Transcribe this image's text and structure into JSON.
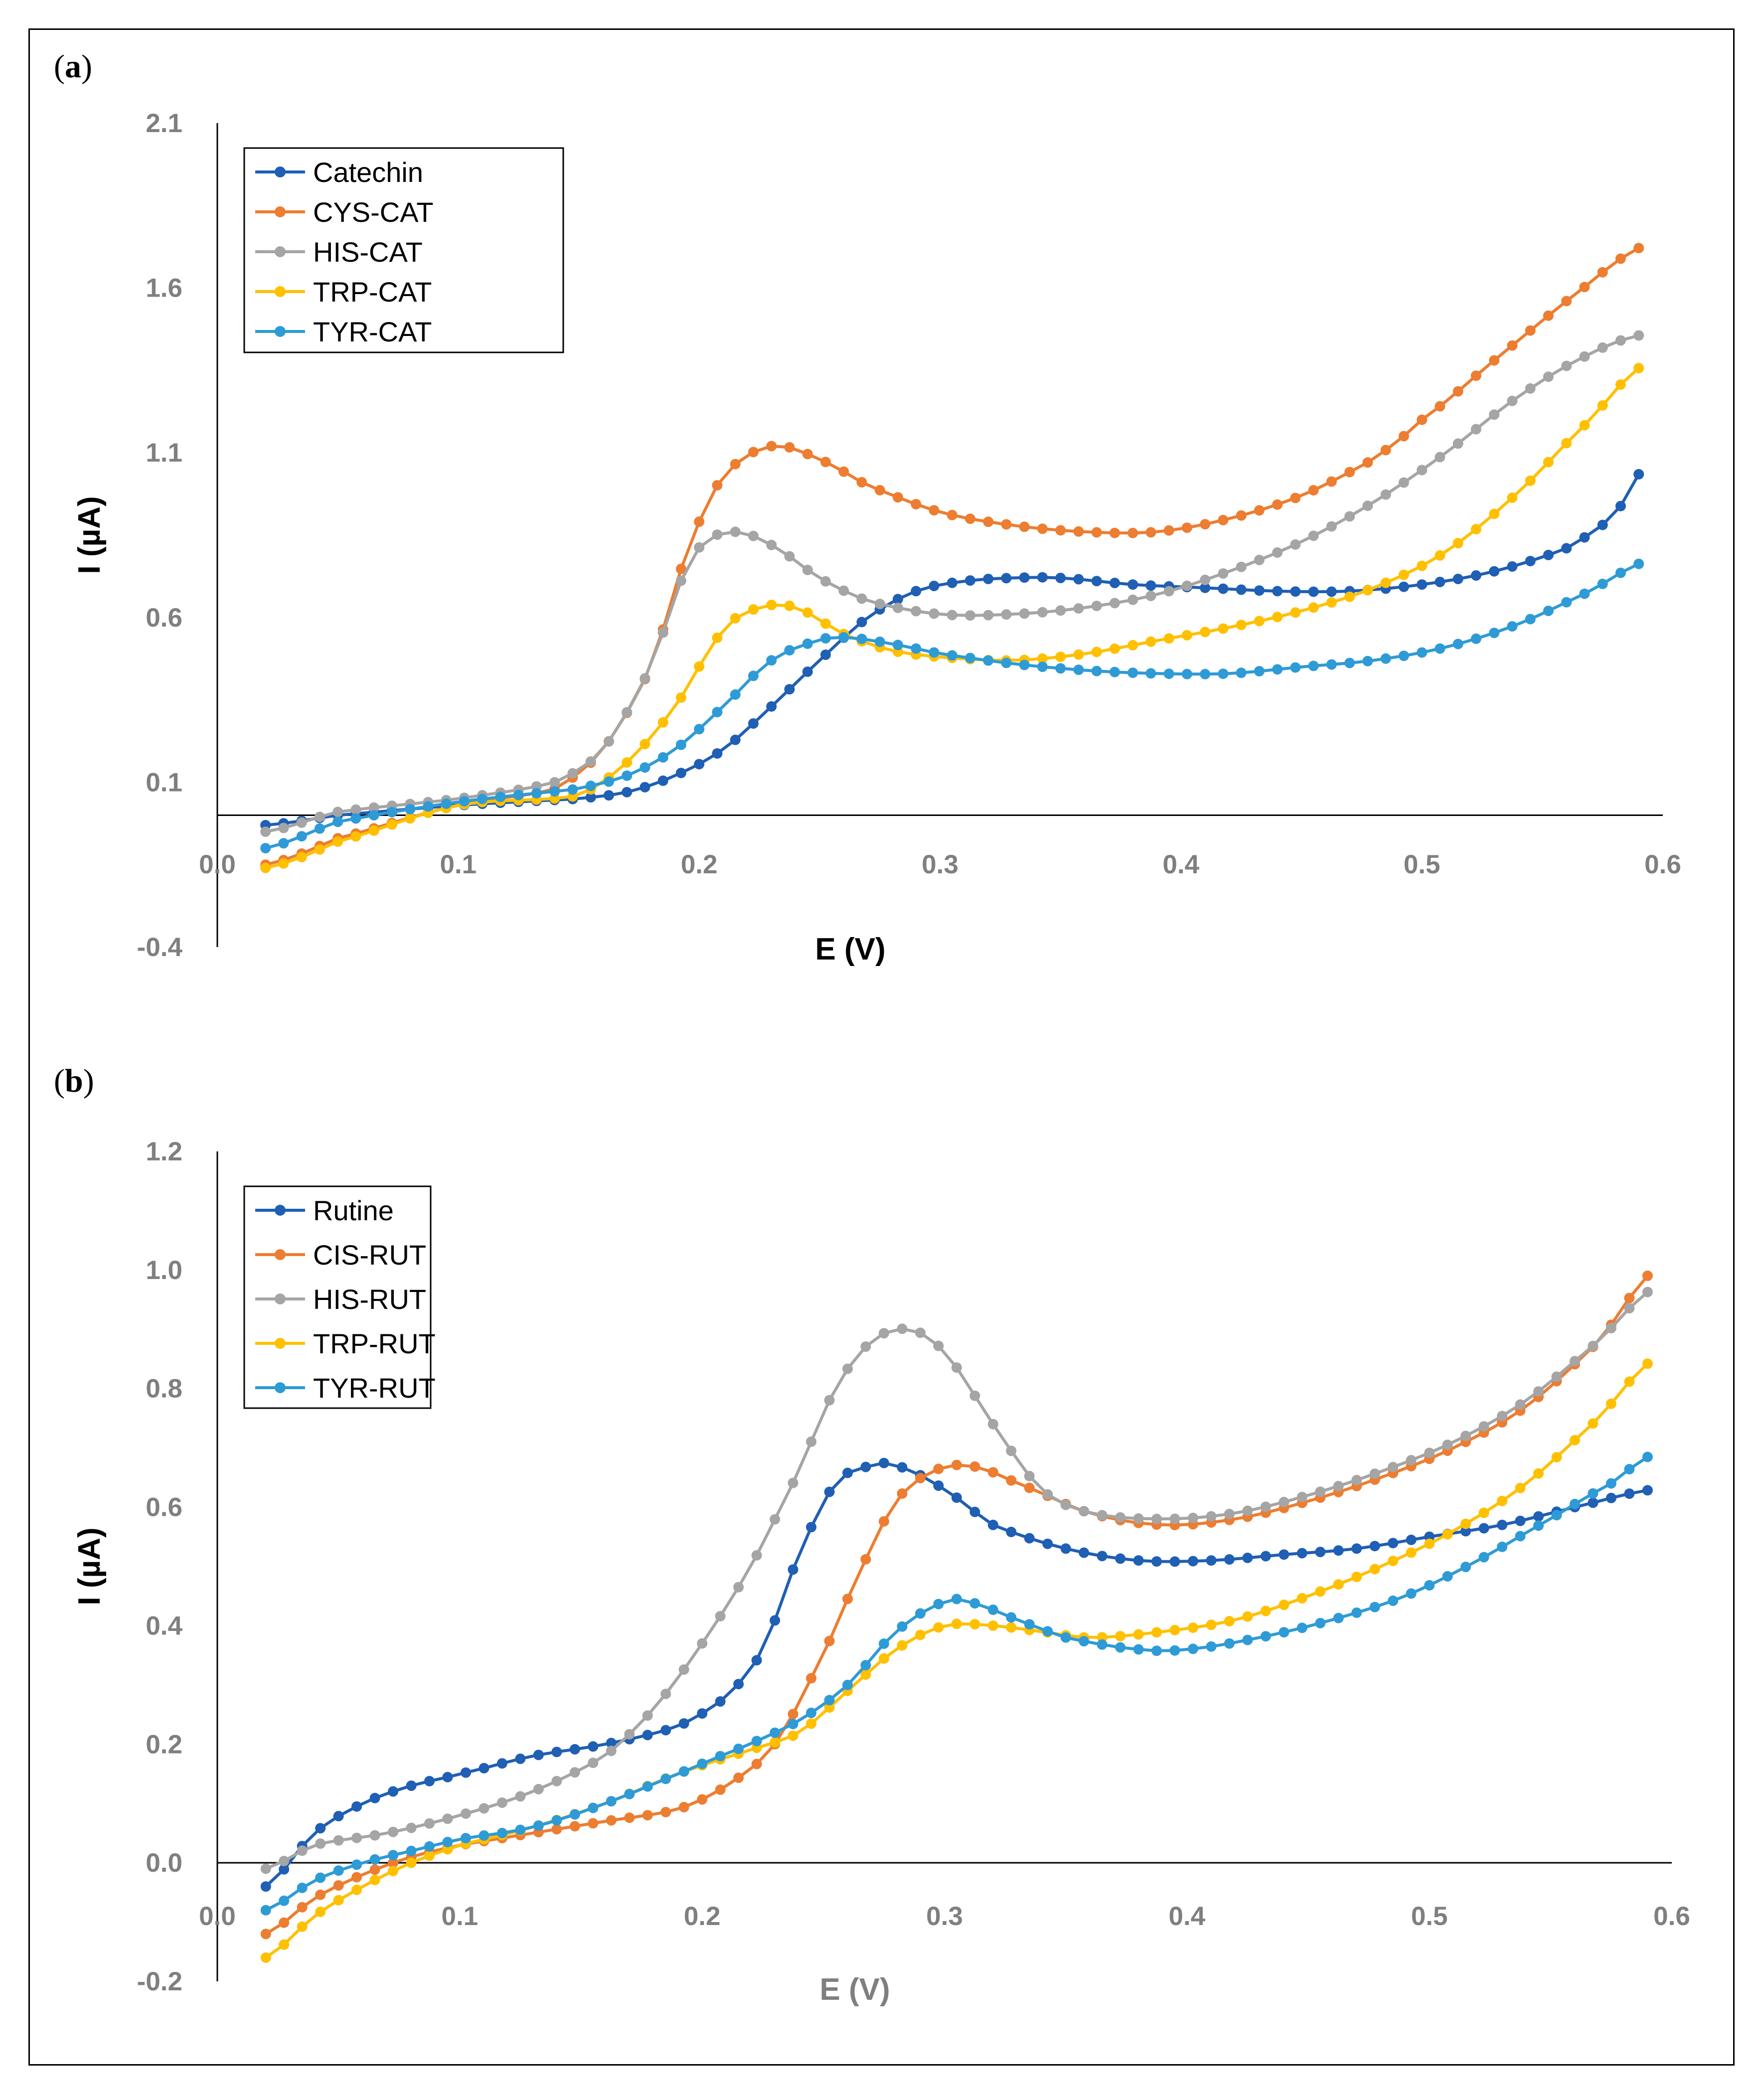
{
  "chart_data": [
    {
      "panel_label": "a",
      "type": "line",
      "xlabel": "E (V)",
      "ylabel": "I (µA)",
      "xlim": [
        0.0,
        0.6
      ],
      "ylim": [
        -0.4,
        2.1
      ],
      "xticks": [
        "0.0",
        "0.1",
        "0.2",
        "0.3",
        "0.4",
        "0.5",
        "0.6"
      ],
      "yticks": [
        "-0.4",
        "0.1",
        "0.6",
        "1.1",
        "1.6",
        "2.1"
      ],
      "ytick_values": [
        -0.4,
        0.1,
        0.6,
        1.1,
        1.6,
        2.1
      ],
      "legend_position": "top-left",
      "series": [
        {
          "name": "Catechin",
          "color": "#1f5fb4",
          "x": [
            0.02,
            0.05,
            0.1,
            0.15,
            0.17,
            0.19,
            0.21,
            0.23,
            0.25,
            0.27,
            0.29,
            0.31,
            0.33,
            0.35,
            0.38,
            0.41,
            0.44,
            0.47,
            0.5,
            0.53,
            0.56,
            0.58,
            0.593
          ],
          "y": [
            -0.03,
            0.0,
            0.03,
            0.05,
            0.07,
            0.12,
            0.2,
            0.33,
            0.47,
            0.6,
            0.68,
            0.71,
            0.72,
            0.72,
            0.7,
            0.69,
            0.68,
            0.68,
            0.7,
            0.74,
            0.81,
            0.91,
            1.06
          ]
        },
        {
          "name": "CYS-CAT",
          "color": "#ed7d31",
          "x": [
            0.02,
            0.05,
            0.1,
            0.14,
            0.16,
            0.18,
            0.195,
            0.21,
            0.23,
            0.25,
            0.27,
            0.3,
            0.33,
            0.36,
            0.39,
            0.42,
            0.45,
            0.48,
            0.5,
            0.53,
            0.56,
            0.593
          ],
          "y": [
            -0.15,
            -0.07,
            0.03,
            0.08,
            0.2,
            0.45,
            0.8,
            1.03,
            1.12,
            1.08,
            1.0,
            0.92,
            0.88,
            0.86,
            0.86,
            0.9,
            0.97,
            1.08,
            1.2,
            1.38,
            1.56,
            1.73
          ]
        },
        {
          "name": "HIS-CAT",
          "color": "#a5a5a5",
          "x": [
            0.02,
            0.05,
            0.1,
            0.14,
            0.16,
            0.18,
            0.195,
            0.205,
            0.215,
            0.23,
            0.25,
            0.27,
            0.3,
            0.33,
            0.36,
            0.39,
            0.42,
            0.45,
            0.48,
            0.51,
            0.54,
            0.57,
            0.593
          ],
          "y": [
            -0.05,
            0.01,
            0.05,
            0.1,
            0.2,
            0.45,
            0.75,
            0.84,
            0.86,
            0.82,
            0.72,
            0.65,
            0.61,
            0.61,
            0.63,
            0.67,
            0.74,
            0.83,
            0.95,
            1.1,
            1.27,
            1.4,
            1.46
          ]
        },
        {
          "name": "TRP-CAT",
          "color": "#ffc000",
          "x": [
            0.02,
            0.05,
            0.1,
            0.15,
            0.17,
            0.19,
            0.21,
            0.225,
            0.24,
            0.26,
            0.28,
            0.3,
            0.33,
            0.36,
            0.39,
            0.42,
            0.45,
            0.48,
            0.51,
            0.54,
            0.57,
            0.593
          ],
          "y": [
            -0.16,
            -0.08,
            0.03,
            0.06,
            0.16,
            0.33,
            0.56,
            0.63,
            0.63,
            0.55,
            0.5,
            0.48,
            0.47,
            0.49,
            0.53,
            0.57,
            0.62,
            0.69,
            0.8,
            0.98,
            1.2,
            1.37
          ]
        },
        {
          "name": "TYR-CAT",
          "color": "#2e9bd6",
          "x": [
            0.02,
            0.05,
            0.1,
            0.15,
            0.17,
            0.19,
            0.21,
            0.23,
            0.25,
            0.26,
            0.28,
            0.3,
            0.33,
            0.36,
            0.39,
            0.42,
            0.45,
            0.48,
            0.51,
            0.54,
            0.57,
            0.593
          ],
          "y": [
            -0.1,
            -0.02,
            0.04,
            0.08,
            0.12,
            0.2,
            0.33,
            0.47,
            0.53,
            0.54,
            0.52,
            0.49,
            0.46,
            0.44,
            0.43,
            0.43,
            0.45,
            0.47,
            0.51,
            0.58,
            0.68,
            0.77
          ]
        }
      ]
    },
    {
      "panel_label": "b",
      "type": "line",
      "xlabel": "E (V)",
      "ylabel": "I (µA)",
      "xlim": [
        0.0,
        0.6
      ],
      "ylim": [
        -0.2,
        1.2
      ],
      "xticks": [
        "0.0",
        "0.1",
        "0.2",
        "0.3",
        "0.4",
        "0.5",
        "0.6"
      ],
      "yticks": [
        "-0.2",
        "0.0",
        "0.2",
        "0.4",
        "0.6",
        "0.8",
        "1.0",
        "1.2"
      ],
      "ytick_values": [
        -0.2,
        0.0,
        0.2,
        0.4,
        0.6,
        0.8,
        1.0,
        1.2
      ],
      "legend_position": "top-left",
      "series": [
        {
          "name": "Rutine",
          "color": "#1f5fb4",
          "x": [
            0.02,
            0.04,
            0.06,
            0.08,
            0.1,
            0.13,
            0.16,
            0.19,
            0.21,
            0.225,
            0.24,
            0.255,
            0.27,
            0.28,
            0.3,
            0.32,
            0.35,
            0.38,
            0.41,
            0.44,
            0.47,
            0.5,
            0.53,
            0.56,
            0.593
          ],
          "y": [
            -0.04,
            0.05,
            0.1,
            0.13,
            0.15,
            0.18,
            0.2,
            0.23,
            0.28,
            0.36,
            0.52,
            0.64,
            0.67,
            0.67,
            0.63,
            0.57,
            0.53,
            0.51,
            0.51,
            0.52,
            0.53,
            0.55,
            0.57,
            0.6,
            0.63
          ]
        },
        {
          "name": "CIS-RUT",
          "color": "#ed7d31",
          "x": [
            0.02,
            0.04,
            0.06,
            0.08,
            0.1,
            0.13,
            0.16,
            0.19,
            0.21,
            0.23,
            0.25,
            0.265,
            0.28,
            0.295,
            0.31,
            0.33,
            0.36,
            0.39,
            0.42,
            0.45,
            0.48,
            0.51,
            0.54,
            0.57,
            0.593
          ],
          "y": [
            -0.12,
            -0.06,
            -0.02,
            0.01,
            0.03,
            0.05,
            0.07,
            0.09,
            0.13,
            0.2,
            0.35,
            0.49,
            0.61,
            0.66,
            0.67,
            0.64,
            0.59,
            0.57,
            0.58,
            0.61,
            0.65,
            0.7,
            0.77,
            0.88,
            1.0
          ]
        },
        {
          "name": "HIS-RUT",
          "color": "#a5a5a5",
          "x": [
            0.02,
            0.04,
            0.07,
            0.1,
            0.13,
            0.16,
            0.18,
            0.2,
            0.22,
            0.24,
            0.255,
            0.27,
            0.285,
            0.3,
            0.32,
            0.34,
            0.36,
            0.39,
            0.42,
            0.45,
            0.48,
            0.51,
            0.54,
            0.57,
            0.593
          ],
          "y": [
            -0.01,
            0.03,
            0.05,
            0.08,
            0.12,
            0.18,
            0.26,
            0.37,
            0.5,
            0.66,
            0.8,
            0.88,
            0.9,
            0.86,
            0.74,
            0.63,
            0.59,
            0.58,
            0.59,
            0.62,
            0.66,
            0.71,
            0.78,
            0.88,
            0.97
          ]
        },
        {
          "name": "TRP-RUT",
          "color": "#ffc000",
          "x": [
            0.02,
            0.04,
            0.06,
            0.08,
            0.1,
            0.13,
            0.16,
            0.19,
            0.22,
            0.24,
            0.26,
            0.28,
            0.3,
            0.32,
            0.34,
            0.36,
            0.39,
            0.42,
            0.45,
            0.48,
            0.51,
            0.54,
            0.57,
            0.593
          ],
          "y": [
            -0.16,
            -0.09,
            -0.04,
            0.0,
            0.03,
            0.06,
            0.1,
            0.15,
            0.19,
            0.22,
            0.29,
            0.36,
            0.4,
            0.4,
            0.39,
            0.38,
            0.39,
            0.41,
            0.45,
            0.5,
            0.56,
            0.64,
            0.75,
            0.85
          ]
        },
        {
          "name": "TYR-RUT",
          "color": "#2e9bd6",
          "x": [
            0.02,
            0.04,
            0.06,
            0.08,
            0.1,
            0.13,
            0.16,
            0.19,
            0.22,
            0.24,
            0.26,
            0.28,
            0.3,
            0.31,
            0.33,
            0.35,
            0.38,
            0.4,
            0.43,
            0.46,
            0.49,
            0.52,
            0.55,
            0.575,
            0.593
          ],
          "y": [
            -0.08,
            -0.03,
            0.0,
            0.02,
            0.04,
            0.06,
            0.1,
            0.15,
            0.2,
            0.24,
            0.3,
            0.39,
            0.44,
            0.44,
            0.41,
            0.38,
            0.36,
            0.36,
            0.38,
            0.41,
            0.45,
            0.51,
            0.58,
            0.64,
            0.69
          ]
        }
      ]
    }
  ]
}
